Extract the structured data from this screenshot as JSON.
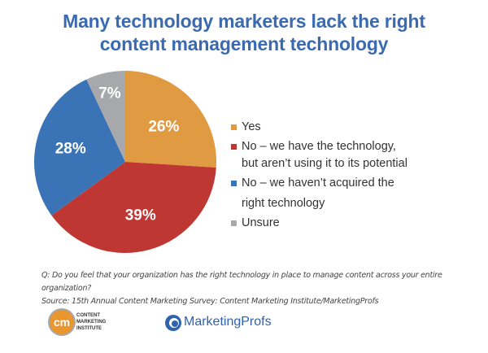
{
  "title_line1": "Many technology marketers lack the right",
  "title_line2": "content management technology",
  "chart_data": {
    "type": "pie",
    "title": "Many technology marketers lack the right content management technology",
    "categories": [
      "Yes",
      "No – we have the technology, but aren’t using it to its potential",
      "No – we haven’t acquired the right technology",
      "Unsure"
    ],
    "values": [
      26,
      39,
      28,
      7
    ],
    "labels": [
      "26%",
      "39%",
      "28%",
      "7%"
    ],
    "colors": [
      "#e09a42",
      "#bf3733",
      "#3a74b6",
      "#a7a8ab"
    ],
    "legend_position": "right"
  },
  "legend": {
    "items": [
      {
        "line1": "Yes",
        "line2": "",
        "color": "#e09a42"
      },
      {
        "line1": "No – we have the technology,",
        "line2": "but aren’t using it to its potential",
        "color": "#bf3733"
      },
      {
        "line1": "No – we haven’t acquired the",
        "line2": "right technology",
        "color": "#3a74b6"
      },
      {
        "line1": "Unsure",
        "line2": "",
        "color": "#a7a8ab"
      }
    ]
  },
  "footer": {
    "question": "Q: Do you feel that your organization has the right technology in place to manage content across your entire organization?",
    "source": "Source: 15th Annual Content Marketing Survey: Content Marketing Institute/MarketingProfs"
  },
  "logos": {
    "cmi_mark": "cm",
    "cmi_line1": "CONTENT",
    "cmi_line2": "MARKETING",
    "cmi_line3": "INSTITUTE",
    "mp_name": "MarketingProfs"
  }
}
